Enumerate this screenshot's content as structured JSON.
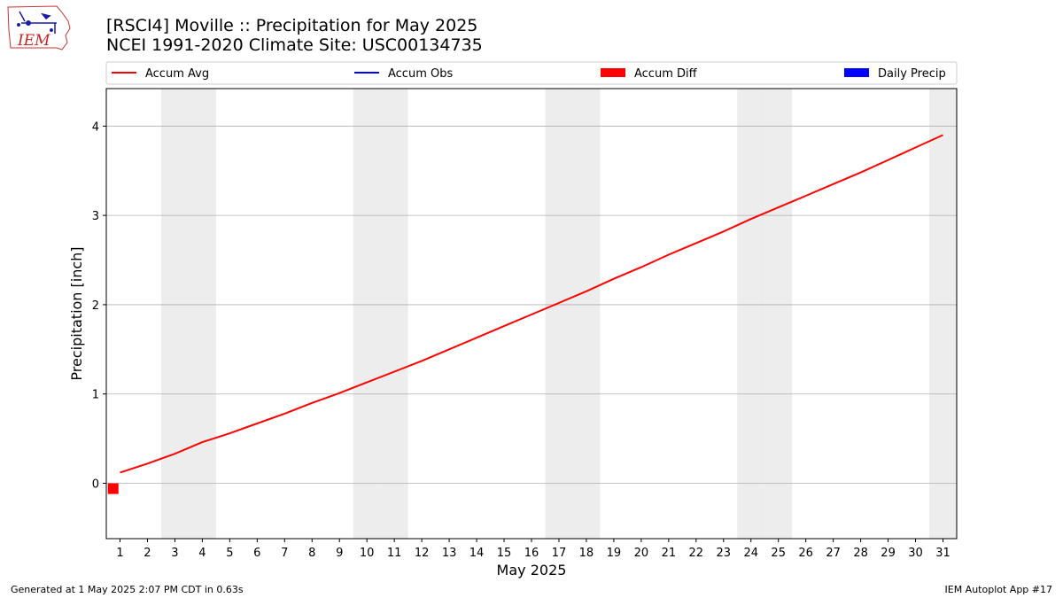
{
  "header": {
    "logo_text": "IEM",
    "title_line1": "[RSCI4] Moville :: Precipitation for May 2025",
    "title_line2": "NCEI 1991-2020 Climate Site: USC00134735"
  },
  "legend": {
    "items": [
      {
        "label": "Accum Avg",
        "kind": "line",
        "color": "#ff0000"
      },
      {
        "label": "Accum Obs",
        "kind": "line",
        "color": "#0000ff"
      },
      {
        "label": "Accum Diff",
        "kind": "bar",
        "color": "#ff0000"
      },
      {
        "label": "Daily Precip",
        "kind": "bar",
        "color": "#0000ff"
      }
    ],
    "placement": "top, above plot"
  },
  "footer": {
    "left": "Generated at 1 May 2025 2:07 PM CDT in 0.63s",
    "right": "IEM Autoplot App #17"
  },
  "colors": {
    "accum_avg": "#ff0000",
    "accum_obs": "#0000ff",
    "accum_diff": "#ff0000",
    "daily_precip": "#0000ff",
    "weekend_shade": "#ededed",
    "grid": "#b0b0b0"
  },
  "chart_data": {
    "type": "line",
    "xlabel": "May 2025",
    "ylabel": "Precipitation [inch]",
    "x": [
      1,
      2,
      3,
      4,
      5,
      6,
      7,
      8,
      9,
      10,
      11,
      12,
      13,
      14,
      15,
      16,
      17,
      18,
      19,
      20,
      21,
      22,
      23,
      24,
      25,
      26,
      27,
      28,
      29,
      30,
      31
    ],
    "xlim": [
      0.5,
      31.5
    ],
    "ylim": [
      -0.62,
      4.42
    ],
    "yticks": [
      0,
      1,
      2,
      3,
      4
    ],
    "grid": "horizontal",
    "weekend_days": [
      3,
      4,
      10,
      11,
      17,
      18,
      24,
      25,
      31
    ],
    "series": [
      {
        "name": "Accum Avg",
        "type": "line",
        "color": "#ff0000",
        "values": [
          0.12,
          0.22,
          0.33,
          0.46,
          0.56,
          0.67,
          0.78,
          0.9,
          1.01,
          1.13,
          1.25,
          1.37,
          1.5,
          1.63,
          1.76,
          1.89,
          2.02,
          2.15,
          2.29,
          2.42,
          2.56,
          2.69,
          2.82,
          2.96,
          3.09,
          3.22,
          3.35,
          3.48,
          3.62,
          3.76,
          3.9
        ]
      },
      {
        "name": "Accum Diff",
        "type": "bar",
        "color": "#ff0000",
        "x": [
          0.75
        ],
        "values": [
          -0.12
        ]
      }
    ]
  }
}
